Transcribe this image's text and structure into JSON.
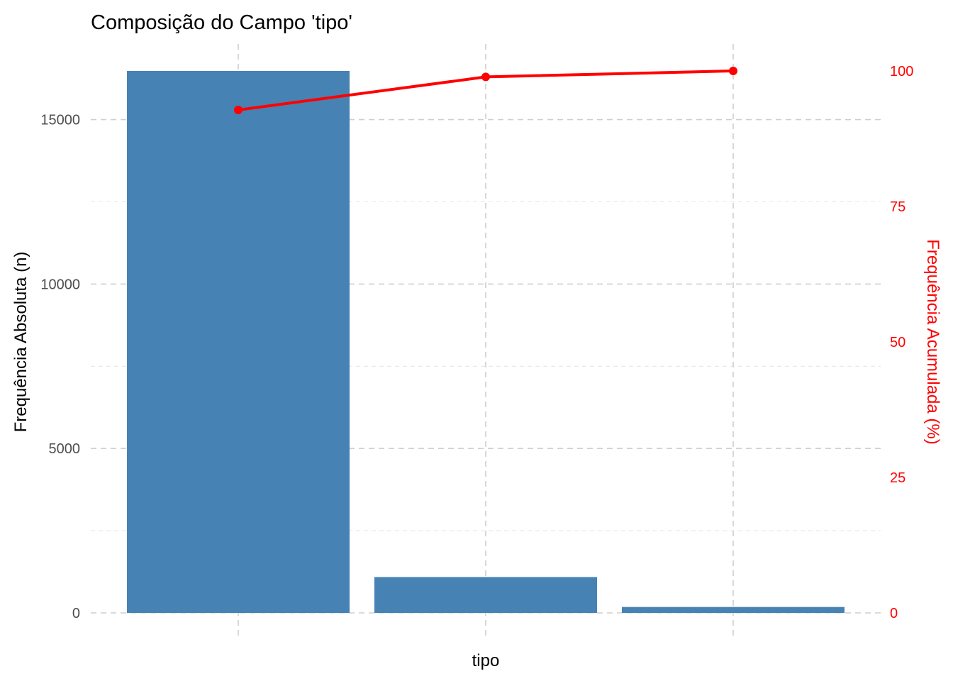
{
  "chart_data": {
    "type": "bar",
    "title": "Composição do Campo 'tipo'",
    "xlabel": "tipo",
    "ylabel": "Frequência Absoluta (n)",
    "y2label": "Frequência Acumulada (%)",
    "categories": [
      "",
      "",
      ""
    ],
    "values": [
      16480,
      1090,
      180
    ],
    "cumulative_percent": [
      92.8,
      98.9,
      100
    ],
    "ylim": [
      0,
      16480
    ],
    "yticks": [
      0,
      5000,
      10000,
      15000
    ],
    "y2lim": [
      0,
      100
    ],
    "y2ticks": [
      0,
      25,
      50,
      75,
      100
    ],
    "grid": true,
    "legend": "none",
    "colors": {
      "bar": "#4682B4",
      "line": "#FF0000",
      "y2_text": "#FF0000",
      "tick_text": "#4D4D4D"
    }
  }
}
